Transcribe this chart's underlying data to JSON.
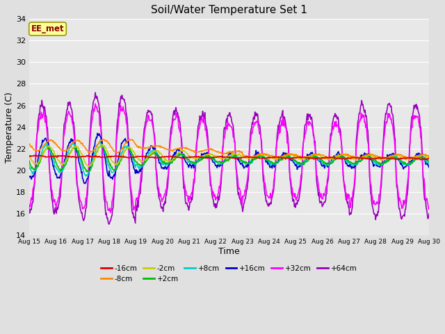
{
  "title": "Soil/Water Temperature Set 1",
  "xlabel": "Time",
  "ylabel": "Temperature (C)",
  "ylim": [
    14,
    34
  ],
  "xlim": [
    0,
    15
  ],
  "fig_bg": "#e0e0e0",
  "plot_bg": "#e8e8e8",
  "grid_color": "#ffffff",
  "annotation_text": "EE_met",
  "annotation_fg": "#880000",
  "annotation_bg": "#ffff99",
  "annotation_border": "#999900",
  "series": {
    "-16cm": {
      "color": "#dd0000",
      "lw": 1.2,
      "zorder": 5
    },
    "-8cm": {
      "color": "#ff8800",
      "lw": 1.2,
      "zorder": 5
    },
    "-2cm": {
      "color": "#cccc00",
      "lw": 1.2,
      "zorder": 5
    },
    "+2cm": {
      "color": "#00bb00",
      "lw": 1.2,
      "zorder": 5
    },
    "+8cm": {
      "color": "#00cccc",
      "lw": 1.2,
      "zorder": 5
    },
    "+16cm": {
      "color": "#0000cc",
      "lw": 1.2,
      "zorder": 5
    },
    "+32cm": {
      "color": "#ff00ff",
      "lw": 1.2,
      "zorder": 4
    },
    "+64cm": {
      "color": "#9900bb",
      "lw": 1.2,
      "zorder": 3
    }
  },
  "xtick_labels": [
    "Aug 15",
    "Aug 16",
    "Aug 17",
    "Aug 18",
    "Aug 19",
    "Aug 20",
    "Aug 21",
    "Aug 22",
    "Aug 23",
    "Aug 24",
    "Aug 25",
    "Aug 26",
    "Aug 27",
    "Aug 28",
    "Aug 29",
    "Aug 30"
  ],
  "ytick_labels": [
    14,
    16,
    18,
    20,
    22,
    24,
    26,
    28,
    30,
    32,
    34
  ],
  "legend_order": [
    "-16cm",
    "-8cm",
    "-2cm",
    "+2cm",
    "+8cm",
    "+16cm",
    "+32cm",
    "+64cm"
  ]
}
